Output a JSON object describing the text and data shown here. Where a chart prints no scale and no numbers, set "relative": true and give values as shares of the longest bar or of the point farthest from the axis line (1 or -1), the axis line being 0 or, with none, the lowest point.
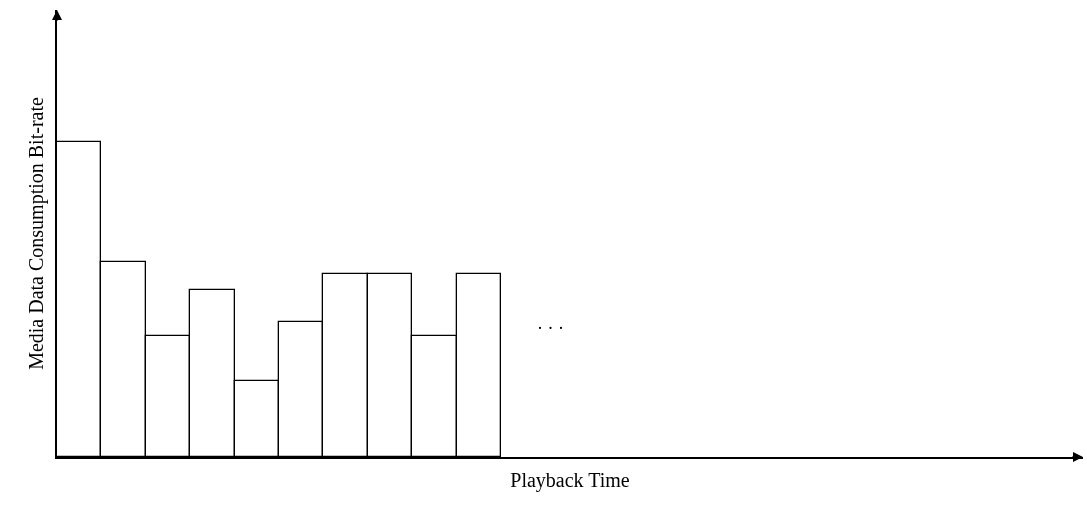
{
  "chart_data": {
    "type": "bar",
    "relative": true,
    "xlabel": "Playback Time",
    "ylabel": "Media Data Consumption Bit-rate",
    "categories": [
      null,
      null,
      null,
      null,
      null,
      null,
      null,
      null,
      null,
      null
    ],
    "values": [
      1,
      0.62,
      0.385,
      0.53,
      0.24,
      0.43,
      0.58,
      0.58,
      0.385,
      0.58
    ],
    "color": "#ffffff",
    "annotations": [
      "· · ·"
    ]
  }
}
